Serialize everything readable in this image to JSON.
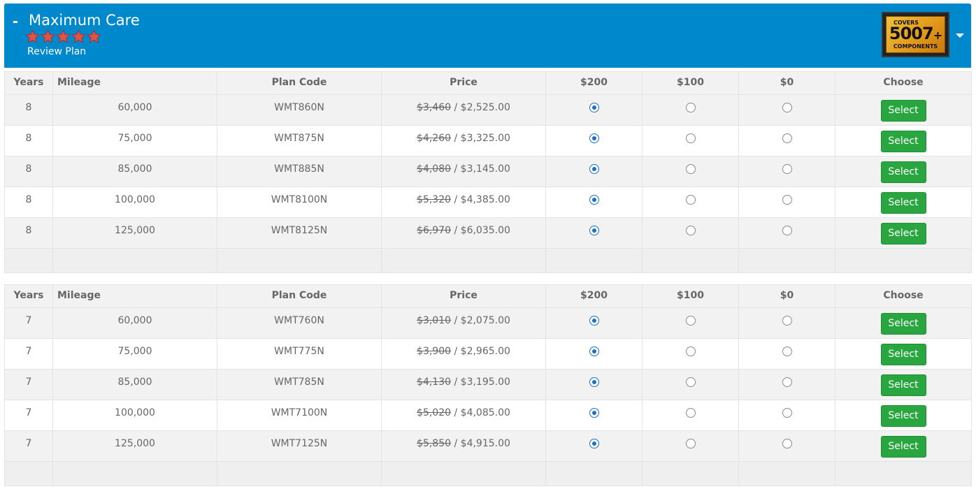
{
  "header": {
    "title": "Maximum Care",
    "collapse_symbol": "-",
    "rating": 5,
    "review_link": "Review Plan",
    "badge": {
      "top": "COVERS",
      "number": "5007",
      "plus": "+",
      "bottom": "COMPONENTS"
    },
    "background_color": "#0088cc",
    "star_color": "#e0524a"
  },
  "columns": [
    "Years",
    "Mileage",
    "Plan Code",
    "Price",
    "$200",
    "$100",
    "$0",
    "Choose"
  ],
  "select_label": "Select",
  "tables": [
    {
      "rows": [
        {
          "years": "8",
          "mileage": "60,000",
          "code": "WMT860N",
          "old_price": "$3,460",
          "price": "$2,525.00",
          "deductible": "$200"
        },
        {
          "years": "8",
          "mileage": "75,000",
          "code": "WMT875N",
          "old_price": "$4,260",
          "price": "$3,325.00",
          "deductible": "$200"
        },
        {
          "years": "8",
          "mileage": "85,000",
          "code": "WMT885N",
          "old_price": "$4,080",
          "price": "$3,145.00",
          "deductible": "$200"
        },
        {
          "years": "8",
          "mileage": "100,000",
          "code": "WMT8100N",
          "old_price": "$5,320",
          "price": "$4,385.00",
          "deductible": "$200"
        },
        {
          "years": "8",
          "mileage": "125,000",
          "code": "WMT8125N",
          "old_price": "$6,970",
          "price": "$6,035.00",
          "deductible": "$200"
        }
      ]
    },
    {
      "rows": [
        {
          "years": "7",
          "mileage": "60,000",
          "code": "WMT760N",
          "old_price": "$3,010",
          "price": "$2,075.00",
          "deductible": "$200"
        },
        {
          "years": "7",
          "mileage": "75,000",
          "code": "WMT775N",
          "old_price": "$3,900",
          "price": "$2,965.00",
          "deductible": "$200"
        },
        {
          "years": "7",
          "mileage": "85,000",
          "code": "WMT785N",
          "old_price": "$4,130",
          "price": "$3,195.00",
          "deductible": "$200"
        },
        {
          "years": "7",
          "mileage": "100,000",
          "code": "WMT7100N",
          "old_price": "$5,020",
          "price": "$4,085.00",
          "deductible": "$200"
        },
        {
          "years": "7",
          "mileage": "125,000",
          "code": "WMT7125N",
          "old_price": "$5,850",
          "price": "$4,915.00",
          "deductible": "$200"
        }
      ]
    }
  ]
}
